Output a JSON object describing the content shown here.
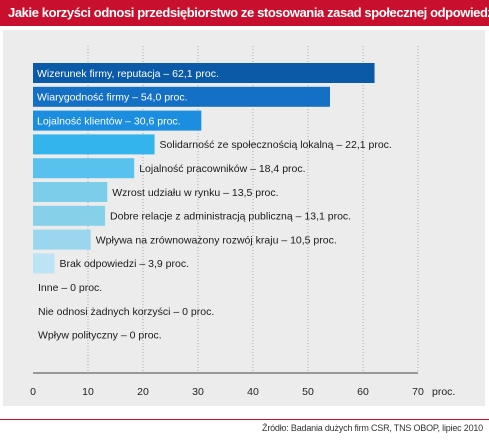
{
  "title": "Jakie korzyści odnosi przedsiębiorstwo ze stosowania zasad społecznej odpowiedzialności",
  "source": "Źródło: Badania dużych firm CSR, TNS OBOP, lipiec 2010",
  "colors": {
    "title_bg": "#c8102e",
    "panel_bg": "#ececec",
    "bar_colors": [
      "#0a5aa8",
      "#1470c4",
      "#1c8ee0",
      "#34b4ec",
      "#58c1ee",
      "#7ccde9",
      "#86d0ea",
      "#9ad7ee",
      "#bde4f4",
      "#e3f3fa",
      "#ffffff",
      "#ffffff"
    ]
  },
  "chart_data": {
    "type": "bar",
    "orientation": "horizontal",
    "categories": [
      "Wizerunek firmy, reputacja",
      "Wiarygodność firmy",
      "Lojalność klientów",
      "Solidarność ze społecznością lokalną",
      "Lojalność pracowników",
      "Wzrost udziału w rynku",
      "Dobre relacje z administracją publiczną",
      "Wpływa na zrównoważony rozwój kraju",
      "Brak odpowiedzi",
      "Inne",
      "Nie odnosi żadnych korzyści",
      "Wpływ polityczny"
    ],
    "values": [
      62.1,
      54.0,
      30.6,
      22.1,
      18.4,
      13.5,
      13.1,
      10.5,
      3.9,
      0,
      0,
      0
    ],
    "labels": [
      "Wizerunek  firmy, reputacja – 62,1 proc.",
      "Wiarygodność firmy – 54,0 proc.",
      "Lojalność klientów – 30,6 proc.",
      "Solidarność ze społecznością lokalną – 22,1 proc.",
      "Lojalność pracowników – 18,4 proc.",
      "Wzrost udziału w rynku – 13,5 proc.",
      "Dobre relacje z administracją publiczną – 13,1 proc.",
      "Wpływa na zrównoważony rozwój kraju – 10,5 proc.",
      "Brak odpowiedzi – 3,9 proc.",
      "Inne – 0 proc.",
      "Nie odnosi żadnych korzyści – 0 proc.",
      "Wpływ polityczny – 0 proc."
    ],
    "label_inside_bar": [
      true,
      true,
      true,
      false,
      false,
      false,
      false,
      false,
      false,
      false,
      false,
      false
    ],
    "xlim": [
      0,
      70
    ],
    "xticks": [
      "0",
      "10",
      "20",
      "30",
      "40",
      "50",
      "60",
      "70"
    ],
    "unit_label": "proc.",
    "grid": true
  }
}
